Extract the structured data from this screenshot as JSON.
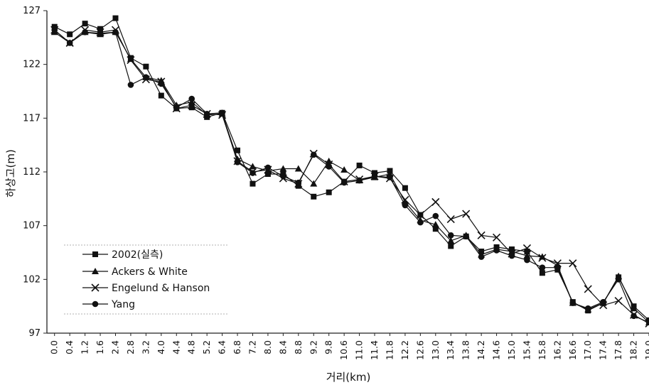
{
  "chart_data": {
    "type": "line",
    "title": "",
    "xlabel": "거리(km)",
    "ylabel": "하상고(m)",
    "ylim": [
      97,
      127
    ],
    "yticks": [
      "97",
      "102",
      "107",
      "112",
      "117",
      "122",
      "127"
    ],
    "x": [
      "0.0",
      "0.4",
      "1.2",
      "1.6",
      "2.4",
      "2.8",
      "3.2",
      "4.0",
      "4.4",
      "4.8",
      "5.2",
      "6.4",
      "6.8",
      "7.2",
      "8.0",
      "8.4",
      "8.8",
      "9.2",
      "9.8",
      "10.6",
      "11.0",
      "11.4",
      "11.8",
      "12.2",
      "12.6",
      "13.0",
      "13.4",
      "13.8",
      "14.2",
      "14.6",
      "15.0",
      "15.4",
      "15.8",
      "16.2",
      "16.6",
      "17.0",
      "17.4",
      "17.8",
      "18.2",
      "19.0"
    ],
    "grid": false,
    "legend": "bottom-left",
    "series": [
      {
        "name": "2002(실측)",
        "marker": "square",
        "values": [
          125.5,
          124.8,
          125.8,
          125.3,
          126.3,
          122.6,
          121.8,
          119.1,
          117.9,
          118.0,
          117.1,
          117.5,
          114.0,
          110.9,
          111.8,
          111.8,
          110.7,
          109.7,
          110.1,
          111.1,
          112.6,
          111.9,
          112.1,
          110.5,
          108.0,
          106.7,
          105.1,
          106.0,
          104.6,
          105.0,
          104.8,
          104.6,
          102.6,
          102.9,
          99.9,
          99.1,
          99.8,
          102.2,
          99.5,
          98.2
        ]
      },
      {
        "name": "Ackers & White",
        "marker": "triangle",
        "values": [
          125.0,
          124.0,
          125.0,
          124.8,
          125.0,
          122.5,
          120.8,
          120.5,
          118.2,
          118.5,
          117.3,
          117.4,
          113.2,
          112.5,
          112.1,
          112.3,
          112.3,
          110.9,
          113.0,
          112.2,
          111.2,
          111.5,
          111.8,
          109.2,
          107.5,
          107.1,
          105.6,
          106.1,
          104.3,
          104.8,
          104.6,
          104.2,
          104.1,
          103.3,
          99.8,
          99.2,
          99.8,
          102.3,
          99.3,
          98.0
        ]
      },
      {
        "name": "Engelund & Hanson",
        "marker": "x",
        "values": [
          125.2,
          124.0,
          125.2,
          125.0,
          125.2,
          122.4,
          120.6,
          120.4,
          117.9,
          118.2,
          117.4,
          117.3,
          113.0,
          112.0,
          112.2,
          111.4,
          110.9,
          113.7,
          112.7,
          111.1,
          111.3,
          111.6,
          111.4,
          109.4,
          108.0,
          109.2,
          107.6,
          108.1,
          106.1,
          105.9,
          104.4,
          104.9,
          104.0,
          103.5,
          103.5,
          101.1,
          99.6,
          100.0,
          98.7,
          97.9
        ]
      },
      {
        "name": "Yang",
        "marker": "circle",
        "values": [
          125.2,
          124.0,
          125.0,
          124.9,
          125.0,
          120.1,
          120.8,
          120.2,
          118.0,
          118.8,
          117.4,
          117.5,
          112.9,
          111.9,
          112.4,
          111.6,
          111.0,
          113.6,
          112.5,
          111.0,
          111.2,
          111.6,
          111.5,
          108.9,
          107.3,
          107.9,
          106.1,
          106.0,
          104.1,
          104.7,
          104.2,
          103.8,
          103.1,
          103.1,
          99.8,
          99.3,
          99.9,
          102.0,
          98.6,
          98.0
        ]
      }
    ]
  }
}
